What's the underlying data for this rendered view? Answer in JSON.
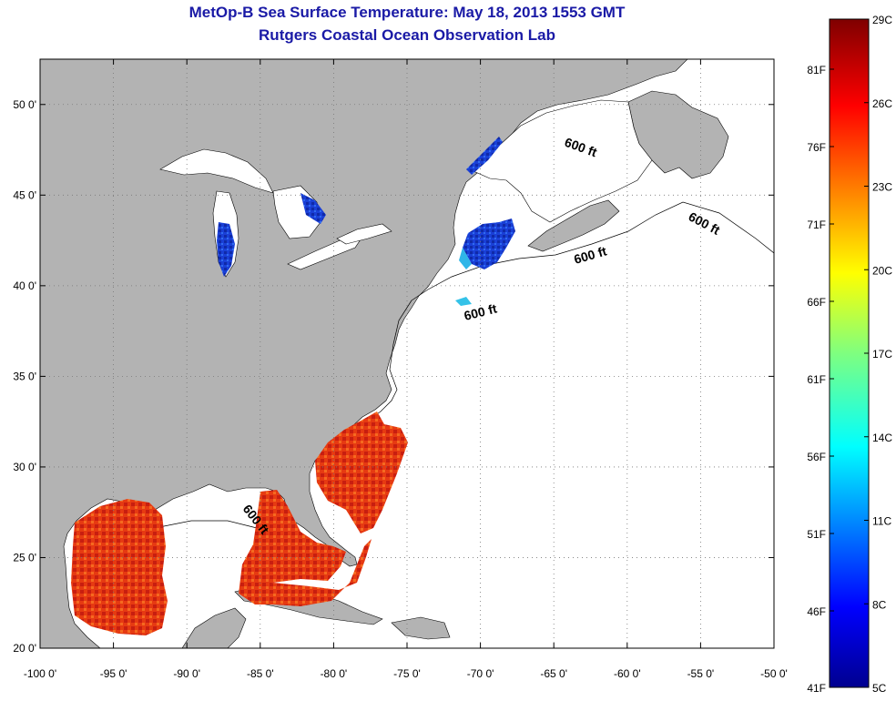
{
  "header": {
    "title": "MetOp-B Sea Surface Temperature:  May 18, 2013 1553 GMT",
    "subtitle": "Rutgers Coastal Ocean Observation Lab"
  },
  "map": {
    "lon_range": [
      -100,
      -50
    ],
    "lat_range": [
      20,
      52.5
    ],
    "lon_ticks": [
      "-100 0'",
      "-95 0'",
      "-90 0'",
      "-85 0'",
      "-80 0'",
      "-75 0'",
      "-70 0'",
      "-65 0'",
      "-60 0'",
      "-55 0'",
      "-50 0'"
    ],
    "lat_ticks": [
      "50 0'",
      "45 0'",
      "40 0'",
      "35 0'",
      "30 0'",
      "25 0'",
      "20 0'"
    ],
    "contour_labels": [
      "600 ft",
      "600 ft",
      "600 ft",
      "600 ft",
      "600 ft"
    ],
    "colors": {
      "land": "#b3b3b3",
      "ocean": "#ffffff",
      "warm_sst": "#e83010",
      "cold_sst": "#1a40d0"
    }
  },
  "colorbar": {
    "celsius_labels": [
      "29C",
      "26C",
      "23C",
      "20C",
      "17C",
      "14C",
      "11C",
      "8C",
      "5C"
    ],
    "fahrenheit_labels": [
      "81F",
      "76F",
      "71F",
      "66F",
      "61F",
      "56F",
      "51F",
      "46F",
      "41F"
    ]
  }
}
